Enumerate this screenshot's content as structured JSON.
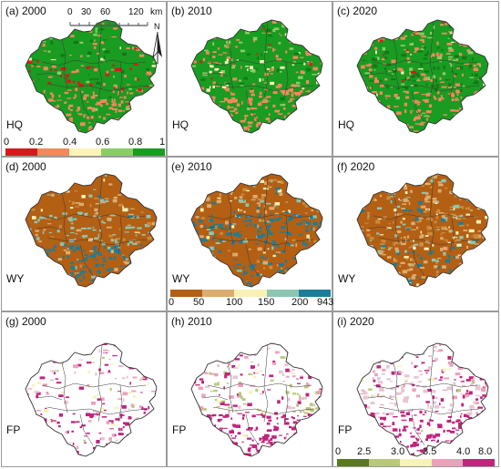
{
  "panels": [
    {
      "id": "a",
      "title": "(a) 2000",
      "label": "HQ",
      "theme": "hq"
    },
    {
      "id": "b",
      "title": "(b) 2010",
      "label": "HQ",
      "theme": "hq"
    },
    {
      "id": "c",
      "title": "(c) 2020",
      "label": "HQ",
      "theme": "hq"
    },
    {
      "id": "d",
      "title": "(d) 2000",
      "label": "WY",
      "theme": "wy"
    },
    {
      "id": "e",
      "title": "(e) 2010",
      "label": "WY",
      "theme": "wy"
    },
    {
      "id": "f",
      "title": "(f) 2020",
      "label": "WY",
      "theme": "wy"
    },
    {
      "id": "g",
      "title": "(g) 2000",
      "label": "FP",
      "theme": "fp"
    },
    {
      "id": "h",
      "title": "(h) 2010",
      "label": "FP",
      "theme": "fp"
    },
    {
      "id": "i",
      "title": "(i) 2020",
      "label": "FP",
      "theme": "fp"
    }
  ],
  "legends": {
    "hq": {
      "ticks": [
        "0",
        "0.2",
        "0.4",
        "0.6",
        "0.8",
        "1"
      ],
      "colors": [
        "#d7191c",
        "#f08a5d",
        "#fbf3b8",
        "#89cd66",
        "#1a9b21"
      ]
    },
    "wy": {
      "ticks": [
        "0",
        "50",
        "100",
        "150",
        "200",
        "943"
      ],
      "colors": [
        "#b35f14",
        "#dcac6e",
        "#f8f1b4",
        "#8cc6b2",
        "#1a7e9a"
      ]
    },
    "fp": {
      "ticks": [
        "0",
        "2.5",
        "3.0",
        "3.5",
        "4.0",
        "8.0"
      ],
      "colors": [
        "#5b7a1c",
        "#b9c97a",
        "#f5f3b8",
        "#eda0bb",
        "#c2237d"
      ]
    }
  },
  "scale_bar": {
    "labels": [
      "0",
      "30",
      "60",
      "120",
      "km"
    ]
  },
  "north_arrow": {
    "label": "N",
    "icon": "north-arrow-icon"
  }
}
